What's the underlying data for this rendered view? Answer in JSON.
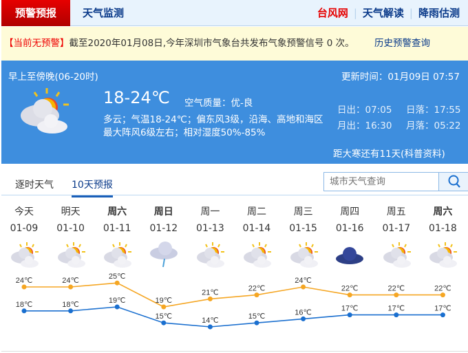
{
  "nav": {
    "active": "预警预报",
    "item2": "天气监测",
    "right": [
      {
        "label": "台风网",
        "color": "#e60000"
      },
      {
        "label": "天气解读",
        "color": "#0a3a8a"
      },
      {
        "label": "降雨估测",
        "color": "#0a3a8a"
      }
    ]
  },
  "warning": {
    "status": "【当前无预警】",
    "text": "截至2020年01月08日,今年深圳市气象台共发布气象预警信号 0 次。",
    "link": "历史预警查询"
  },
  "today": {
    "period": "早上至傍晚(06-20时)",
    "updated": "更新时间：01月09日 07:57",
    "temp": "18-24℃",
    "aqi_label": "空气质量：",
    "aqi": "优-良",
    "desc1": "多云；气温18-24℃；偏东风3级，沿海、高地和海区",
    "desc2": "最大阵风6级左右；相对湿度50%-85%",
    "sunrise": "日出：07:05",
    "sunset": "日落：17:55",
    "moonrise": "月出：16:30",
    "moonset": "月落：05:22",
    "solar_term": "距大寒还有11天(科普资料)",
    "icon": "partly-cloudy"
  },
  "tabs": [
    "逐时天气",
    "10天预报"
  ],
  "search": {
    "placeholder": "城市天气查询"
  },
  "colors": {
    "high": "#f5a623",
    "low": "#1a6fcf",
    "accent": "#3e8ede"
  },
  "forecast": [
    {
      "day": "今天",
      "date": "01-09",
      "icon": "partly-cloudy",
      "high": 24,
      "low": 18,
      "high_label": "24℃",
      "low_label": "18℃"
    },
    {
      "day": "明天",
      "date": "01-10",
      "icon": "partly-cloudy",
      "high": 24,
      "low": 18,
      "high_label": "24℃",
      "low_label": "18℃"
    },
    {
      "day": "周六",
      "date": "01-11",
      "icon": "partly-cloudy",
      "high": 25,
      "low": 19,
      "high_label": "25℃",
      "low_label": "19℃",
      "bold": true
    },
    {
      "day": "周日",
      "date": "01-12",
      "icon": "light-rain",
      "high": 19,
      "low": 15,
      "high_label": "19℃",
      "low_label": "15℃",
      "bold": true
    },
    {
      "day": "周一",
      "date": "01-13",
      "icon": "partly-cloudy",
      "high": 21,
      "low": 14,
      "high_label": "21℃",
      "low_label": "14℃"
    },
    {
      "day": "周二",
      "date": "01-14",
      "icon": "partly-cloudy",
      "high": 22,
      "low": 15,
      "high_label": "22℃",
      "low_label": "15℃"
    },
    {
      "day": "周三",
      "date": "01-15",
      "icon": "partly-cloudy",
      "high": 24,
      "low": 16,
      "high_label": "24℃",
      "low_label": "16℃"
    },
    {
      "day": "周四",
      "date": "01-16",
      "icon": "overcast",
      "high": 22,
      "low": 17,
      "high_label": "22℃",
      "low_label": "17℃"
    },
    {
      "day": "周五",
      "date": "01-17",
      "icon": "partly-cloudy",
      "high": 22,
      "low": 17,
      "high_label": "22℃",
      "low_label": "17℃"
    },
    {
      "day": "周六",
      "date": "01-18",
      "icon": "partly-cloudy",
      "high": 22,
      "low": 17,
      "high_label": "22℃",
      "low_label": "17℃",
      "bold": true
    }
  ]
}
